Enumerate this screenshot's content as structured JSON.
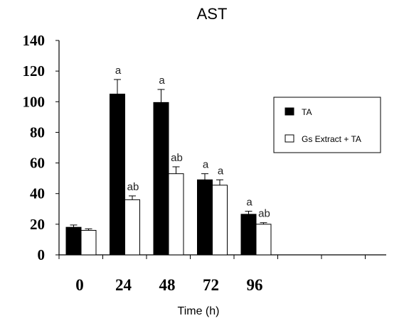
{
  "chart_data": {
    "type": "bar",
    "title": "AST",
    "xlabel": "Time (h)",
    "ylabel": "",
    "ylim": [
      0,
      140
    ],
    "yticks": [
      0,
      20,
      40,
      60,
      80,
      100,
      120,
      140
    ],
    "categories": [
      "0",
      "24",
      "48",
      "72",
      "96"
    ],
    "grid": false,
    "legend_position": "right",
    "series": [
      {
        "name": "TA",
        "color": "#000000",
        "values": [
          18,
          105,
          99.5,
          49,
          26.5
        ],
        "errors": [
          1.5,
          9.5,
          8.5,
          4,
          2
        ],
        "annotations": [
          "",
          "a",
          "a",
          "a",
          "a"
        ]
      },
      {
        "name": "Gs Extract + TA",
        "color": "#ffffff",
        "values": [
          16,
          36,
          53,
          45.5,
          20
        ],
        "errors": [
          1,
          2.5,
          4.5,
          3.5,
          1
        ],
        "annotations": [
          "",
          "ab",
          "ab",
          "a",
          "ab"
        ]
      }
    ]
  }
}
